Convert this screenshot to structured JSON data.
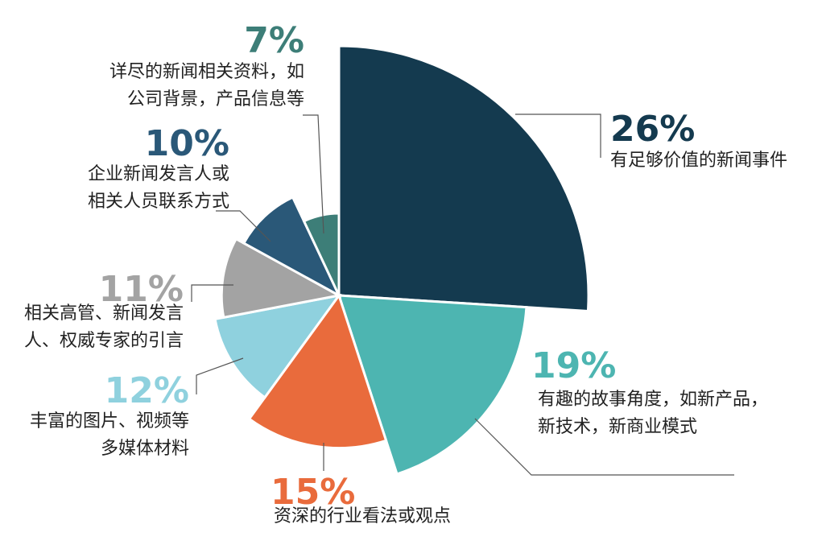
{
  "chart_data": {
    "type": "pie",
    "title": "",
    "slices": [
      {
        "value": 26,
        "pct_label": "26%",
        "label_lines": [
          "有足够价值的新闻事件"
        ],
        "color": "#143a4f"
      },
      {
        "value": 19,
        "pct_label": "19%",
        "label_lines": [
          "有趣的故事角度，如新产品，",
          "新技术，新商业模式"
        ],
        "color": "#4db5b1"
      },
      {
        "value": 15,
        "pct_label": "15%",
        "label_lines": [
          "资深的行业看法或观点"
        ],
        "color": "#e96b3c"
      },
      {
        "value": 12,
        "pct_label": "12%",
        "label_lines": [
          "丰富的图片、视频等",
          "多媒体材料"
        ],
        "color": "#8fd1de"
      },
      {
        "value": 11,
        "pct_label": "11%",
        "label_lines": [
          "相关高管、新闻发言",
          "人、权威专家的引言"
        ],
        "color": "#a3a3a3"
      },
      {
        "value": 10,
        "pct_label": "10%",
        "label_lines": [
          "企业新闻发言人或",
          "相关人员联系方式"
        ],
        "color": "#2a5878"
      },
      {
        "value": 7,
        "pct_label": "7%",
        "label_lines": [
          "详尽的新闻相关资料，如",
          "公司背景，产品信息等"
        ],
        "color": "#3d7e78"
      }
    ]
  }
}
